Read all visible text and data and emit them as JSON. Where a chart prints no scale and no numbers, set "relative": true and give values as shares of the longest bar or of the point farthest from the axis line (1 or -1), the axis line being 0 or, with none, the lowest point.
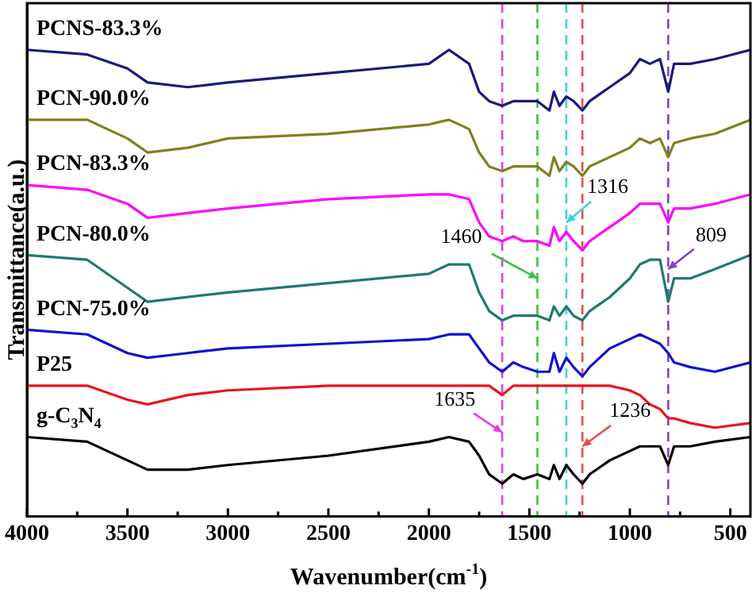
{
  "chart_data": {
    "type": "line",
    "relative": true,
    "xlabel": "Wavenumber(cm$^{-1}$)",
    "ylabel": "Transmittance(a.u.)",
    "x": [
      4000,
      3700,
      3500,
      3400,
      3200,
      3000,
      2500,
      2000,
      1900,
      1800,
      1750,
      1700,
      1635,
      1580,
      1530,
      1460,
      1400,
      1378,
      1350,
      1316,
      1280,
      1236,
      1200,
      1100,
      1000,
      950,
      900,
      850,
      809,
      780,
      700,
      577,
      400
    ],
    "xlim": [
      4000,
      400
    ],
    "xticks": [
      4000,
      {
        "value": 3750,
        "label": null
      },
      3500,
      {
        "value": 3250,
        "label": null
      },
      3000,
      {
        "value": 2750,
        "label": null
      },
      2500,
      {
        "value": 2250,
        "label": null
      },
      2000,
      {
        "value": 1750,
        "label": null
      },
      1500,
      {
        "value": 1250,
        "label": null
      },
      1000,
      {
        "value": 750,
        "label": null
      },
      500
    ],
    "grid": false,
    "legend": false,
    "marker": "none",
    "line_style": "solid",
    "tick_labels": "x",
    "series": [
      {
        "name": "PCNS-83.3%",
        "color": "#1a1a7a",
        "values": [
          1.0,
          0.99,
          0.96,
          0.93,
          0.92,
          0.93,
          0.95,
          0.97,
          1.0,
          0.97,
          0.91,
          0.89,
          0.88,
          0.89,
          0.89,
          0.89,
          0.87,
          0.91,
          0.88,
          0.9,
          0.89,
          0.87,
          0.89,
          0.92,
          0.95,
          0.98,
          0.97,
          0.98,
          0.91,
          0.97,
          0.97,
          0.98,
          1.0
        ]
      },
      {
        "name": "PCN-90.0%",
        "color": "#808020",
        "values": [
          0.85,
          0.85,
          0.81,
          0.78,
          0.79,
          0.81,
          0.82,
          0.84,
          0.85,
          0.83,
          0.78,
          0.75,
          0.74,
          0.75,
          0.75,
          0.75,
          0.73,
          0.77,
          0.74,
          0.76,
          0.75,
          0.73,
          0.75,
          0.77,
          0.79,
          0.81,
          0.8,
          0.81,
          0.77,
          0.8,
          0.81,
          0.82,
          0.85
        ]
      },
      {
        "name": "PCN-83.3%",
        "color": "#ff00ff",
        "values": [
          0.71,
          0.7,
          0.67,
          0.64,
          0.65,
          0.66,
          0.68,
          0.69,
          0.69,
          0.68,
          0.63,
          0.6,
          0.59,
          0.6,
          0.59,
          0.59,
          0.58,
          0.62,
          0.59,
          0.61,
          0.59,
          0.57,
          0.59,
          0.62,
          0.65,
          0.67,
          0.67,
          0.67,
          0.63,
          0.66,
          0.66,
          0.67,
          0.69
        ]
      },
      {
        "name": "PCN-80.0%",
        "color": "#1f7a70",
        "values": [
          0.56,
          0.55,
          0.49,
          0.46,
          0.47,
          0.48,
          0.5,
          0.52,
          0.54,
          0.54,
          0.48,
          0.44,
          0.42,
          0.43,
          0.43,
          0.43,
          0.42,
          0.45,
          0.43,
          0.45,
          0.43,
          0.42,
          0.44,
          0.47,
          0.51,
          0.54,
          0.55,
          0.55,
          0.46,
          0.51,
          0.51,
          0.53,
          0.56
        ]
      },
      {
        "name": "PCN-75.0%",
        "color": "#1010d0",
        "values": [
          0.4,
          0.39,
          0.35,
          0.34,
          0.35,
          0.36,
          0.37,
          0.38,
          0.39,
          0.39,
          0.36,
          0.33,
          0.31,
          0.33,
          0.32,
          0.31,
          0.31,
          0.35,
          0.31,
          0.34,
          0.32,
          0.3,
          0.32,
          0.36,
          0.38,
          0.39,
          0.38,
          0.37,
          0.35,
          0.33,
          0.32,
          0.31,
          0.33
        ]
      },
      {
        "name": "P25",
        "color": "#e8141e",
        "values": [
          0.28,
          0.28,
          0.25,
          0.24,
          0.26,
          0.27,
          0.28,
          0.28,
          0.28,
          0.28,
          0.28,
          0.28,
          0.26,
          0.28,
          0.28,
          0.28,
          0.28,
          0.28,
          0.28,
          0.28,
          0.28,
          0.28,
          0.28,
          0.28,
          0.27,
          0.26,
          0.24,
          0.23,
          0.21,
          0.21,
          0.2,
          0.19,
          0.2
        ]
      },
      {
        "name": "g-C$_{3}$N$_{4}$",
        "color": "#000000",
        "values": [
          0.17,
          0.16,
          0.12,
          0.1,
          0.1,
          0.11,
          0.13,
          0.16,
          0.17,
          0.16,
          0.13,
          0.09,
          0.07,
          0.09,
          0.08,
          0.09,
          0.08,
          0.11,
          0.08,
          0.11,
          0.09,
          0.07,
          0.09,
          0.12,
          0.14,
          0.15,
          0.15,
          0.15,
          0.11,
          0.15,
          0.15,
          0.16,
          0.17
        ]
      }
    ],
    "ref_lines": [
      {
        "axis": "x",
        "value": 1635,
        "color": "#e040e0",
        "line_style": "dashed"
      },
      {
        "axis": "x",
        "value": 1460,
        "color": "#40c040",
        "line_style": "dashed"
      },
      {
        "axis": "x",
        "value": 1316,
        "color": "#40d0e0",
        "line_style": "dashed"
      },
      {
        "axis": "x",
        "value": 1236,
        "color": "#e05050",
        "line_style": "dashed"
      },
      {
        "axis": "x",
        "value": 809,
        "color": "#8040d0",
        "line_style": "dashed"
      }
    ],
    "annotations": [
      {
        "text": "1316",
        "x": 1316,
        "y": 0.63
      },
      {
        "text": "1460",
        "x": 1460,
        "y": 0.51
      },
      {
        "text": "809",
        "x": 809,
        "y": 0.53
      },
      {
        "text": "1635",
        "x": 1635,
        "y": 0.18
      },
      {
        "text": "1236",
        "x": 1236,
        "y": 0.15
      }
    ]
  }
}
